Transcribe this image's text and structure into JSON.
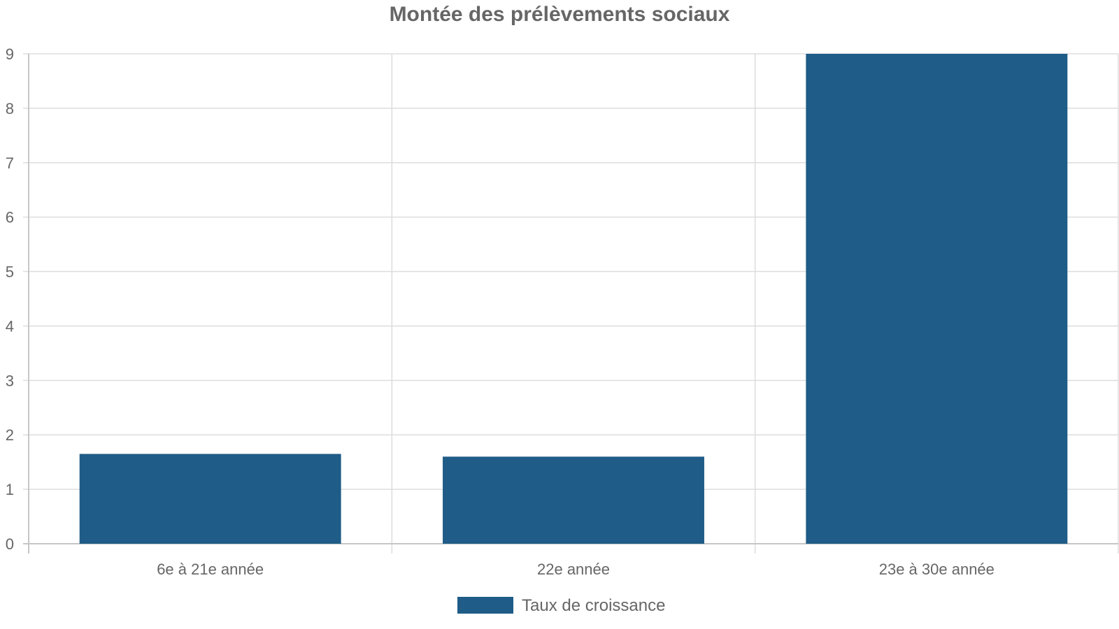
{
  "chart_data": {
    "type": "bar",
    "title": "Montée des prélèvements sociaux",
    "xlabel": "",
    "ylabel": "",
    "categories": [
      "6e à 21e année",
      "22e année",
      "23e à 30e année"
    ],
    "series": [
      {
        "name": "Taux de croissance",
        "values": [
          1.65,
          1.6,
          9
        ]
      }
    ],
    "ylim": [
      0,
      9
    ],
    "yticks": [
      "0",
      "1",
      "2",
      "3",
      "4",
      "5",
      "6",
      "7",
      "8",
      "9"
    ],
    "grid": true,
    "legend_position": "bottom",
    "colors": {
      "bar": "#1f5c87",
      "grid": "#dddddd",
      "text": "#666666"
    }
  }
}
